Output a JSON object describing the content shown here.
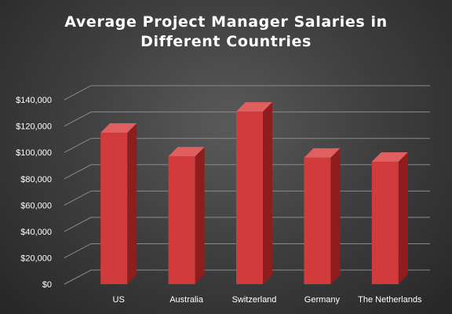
{
  "chart_data": {
    "type": "bar",
    "title": "Average Project Manager Salaries in Different Countries",
    "title_lines": [
      "Average Project Manager Salaries in",
      "Different Countries"
    ],
    "categories": [
      "US",
      "Australia",
      "Switzerland",
      "Germany",
      "The Netherlands"
    ],
    "values": [
      115000,
      97000,
      131000,
      96000,
      93000
    ],
    "xlabel": "",
    "ylabel": "",
    "ylim": [
      0,
      140000
    ],
    "ytick_step": 20000,
    "ytick_labels": [
      "$0",
      "$20,000",
      "$40,000",
      "$60,000",
      "$80,000",
      "$100,000",
      "$120,000",
      "$140,000"
    ],
    "grid": true,
    "legend": false,
    "three_d": true,
    "colors": {
      "bar_front": "#d23b3b",
      "bar_side": "#8e1e1e",
      "bar_top": "#e06060",
      "grid": "#8a8a8a",
      "text": "#ffffff"
    }
  }
}
